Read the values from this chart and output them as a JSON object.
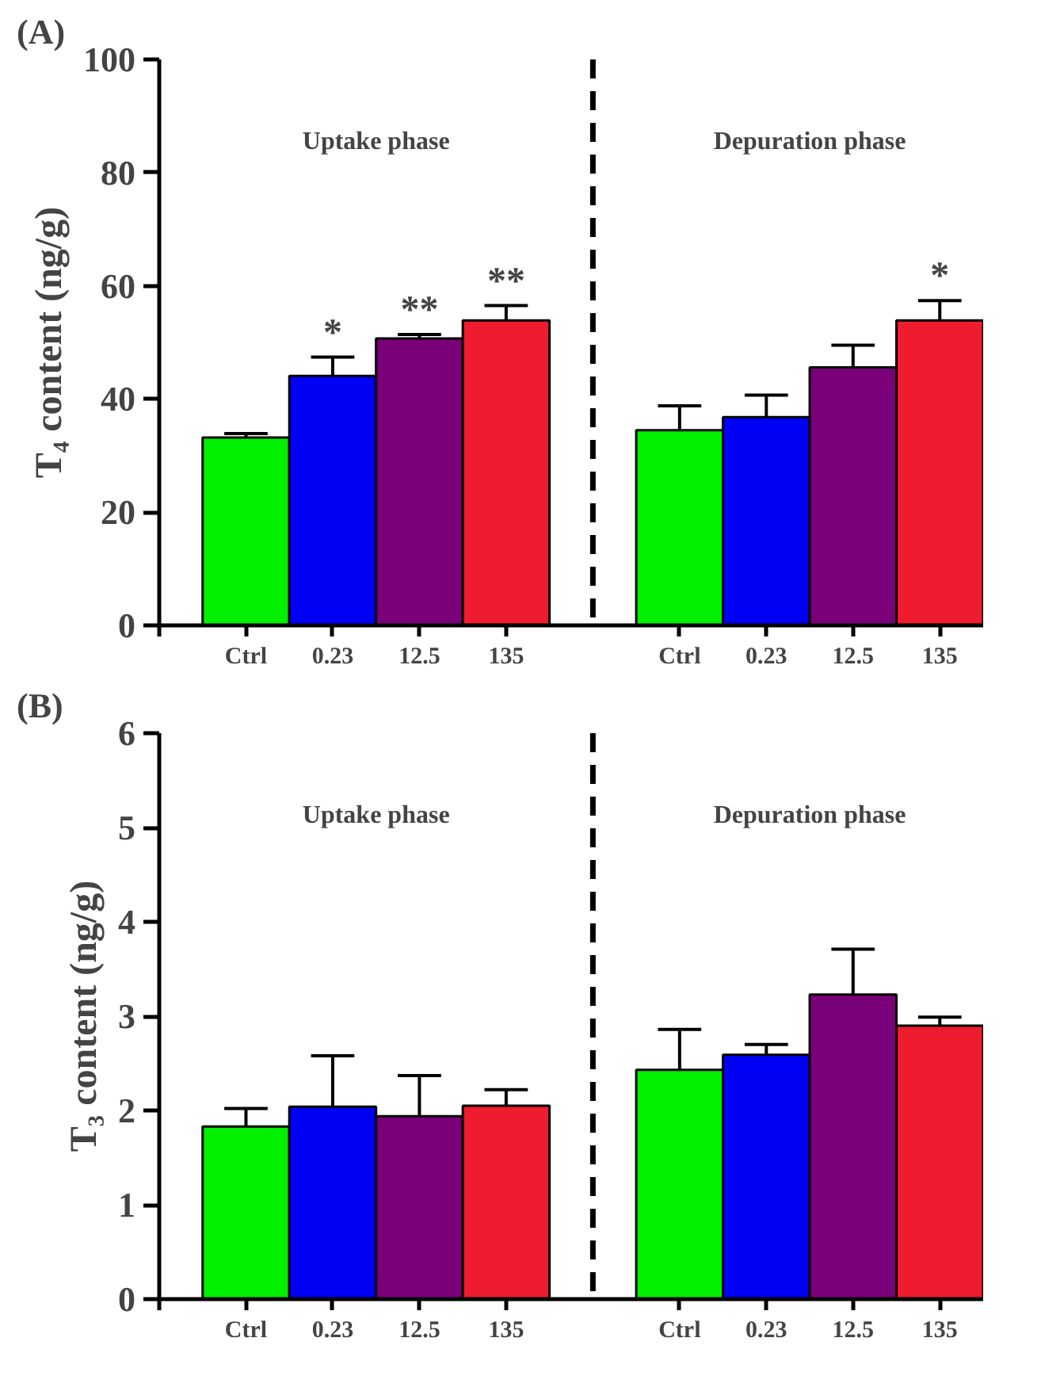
{
  "chart_data": [
    {
      "type": "bar",
      "title": "(A)",
      "ylabel": "T₄ content (ng/g)",
      "categories": [
        "Ctrl",
        "0.23",
        "12.5",
        "135",
        null,
        "Ctrl",
        "0.23",
        "12.5",
        "135"
      ],
      "values": [
        33.2,
        44.1,
        50.7,
        53.9,
        null,
        34.5,
        36.8,
        45.6,
        53.9
      ],
      "errors": [
        [
          33.2,
          33.9
        ],
        [
          44.1,
          47.4
        ],
        [
          50.7,
          51.4
        ],
        [
          53.9,
          56.5
        ],
        null,
        [
          34.5,
          38.8
        ],
        [
          36.8,
          40.7
        ],
        [
          45.6,
          49.5
        ],
        [
          53.9,
          57.4
        ]
      ],
      "colors": [
        "#00f000",
        "#0000f5",
        "#7a007a",
        "#ee1c2e",
        "#ffffff",
        "#00f000",
        "#0000f5",
        "#7a007a",
        "#ee1c2e"
      ],
      "ylim": [
        0,
        100
      ],
      "yticks": [
        0,
        20,
        40,
        60,
        80,
        100
      ],
      "ref_lines": [
        {
          "axis": "x",
          "value": null,
          "line_style": "dashed",
          "color": "#000000"
        }
      ],
      "value_labels": [
        null,
        "*",
        "**",
        "**",
        null,
        null,
        null,
        null,
        "*"
      ],
      "annotations": [
        "Uptake phase",
        "Depuration phase"
      ]
    },
    {
      "type": "bar",
      "title": "(B)",
      "ylabel": "T₃ content (ng/g)",
      "categories": [
        "Ctrl",
        "0.23",
        "12.5",
        "135",
        null,
        "Ctrl",
        "0.23",
        "12.5",
        "135"
      ],
      "values": [
        1.83,
        2.04,
        1.94,
        2.05,
        null,
        2.43,
        2.59,
        3.23,
        2.9
      ],
      "errors": [
        [
          1.83,
          2.02
        ],
        [
          2.04,
          2.58
        ],
        [
          1.94,
          2.37
        ],
        [
          2.05,
          2.22
        ],
        null,
        [
          2.43,
          2.86
        ],
        [
          2.59,
          2.7
        ],
        [
          3.23,
          3.71
        ],
        [
          2.9,
          2.99
        ]
      ],
      "colors": [
        "#00f000",
        "#0000f5",
        "#7a007a",
        "#ee1c2e",
        "#ffffff",
        "#00f000",
        "#0000f5",
        "#7a007a",
        "#ee1c2e"
      ],
      "ylim": [
        0,
        6
      ],
      "yticks": [
        0,
        1,
        2,
        3,
        4,
        5,
        6
      ],
      "ref_lines": [
        {
          "axis": "x",
          "value": null,
          "line_style": "dashed",
          "color": "#000000"
        }
      ],
      "annotations": [
        "Uptake phase",
        "Depuration phase"
      ]
    }
  ]
}
